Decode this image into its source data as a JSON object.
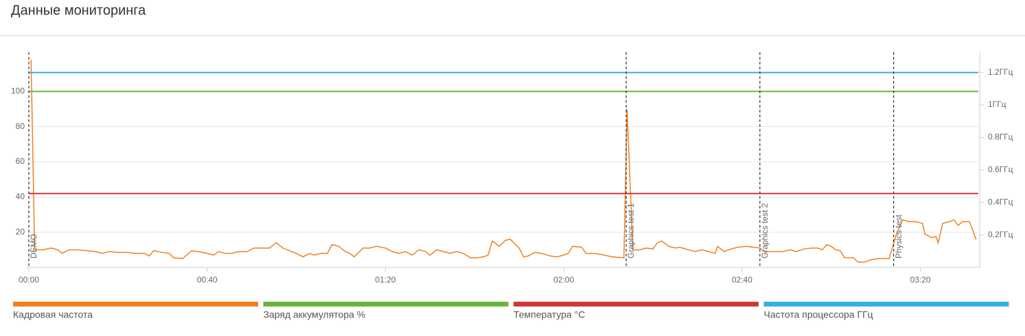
{
  "title": "Данные мониторинга",
  "chart_data": {
    "type": "line",
    "xlim": [
      0,
      213
    ],
    "xticks": [
      {
        "value": 0,
        "label": "00:00"
      },
      {
        "value": 40,
        "label": "00:40"
      },
      {
        "value": 80,
        "label": "01:20"
      },
      {
        "value": 120,
        "label": "02:00"
      },
      {
        "value": 160,
        "label": "02:40"
      },
      {
        "value": 200,
        "label": "03:20"
      }
    ],
    "ylim": [
      0,
      120
    ],
    "yticks": [
      20,
      40,
      60,
      80,
      100
    ],
    "y2lim": [
      0,
      1.3
    ],
    "y2ticks": [
      {
        "value": 0.2,
        "label": "0.2ГГц"
      },
      {
        "value": 0.4,
        "label": "0.4ГГц"
      },
      {
        "value": 0.6,
        "label": "0.6ГГц"
      },
      {
        "value": 0.8,
        "label": "0.8ГГц"
      },
      {
        "value": 1,
        "label": "1ГГц"
      },
      {
        "value": 1.2,
        "label": "1.2ГГц"
      }
    ],
    "grid": true,
    "markers": [
      {
        "x": 0,
        "label": "DEMO"
      },
      {
        "x": 134,
        "label": "Graphics test 1"
      },
      {
        "x": 164,
        "label": "Graphics test 2"
      },
      {
        "x": 194,
        "label": "Physics test"
      }
    ],
    "series": [
      {
        "name": "Кадровая частота",
        "color": "#f08020",
        "x": [
          0.5,
          1.3,
          3,
          5,
          6.5,
          7.5,
          9,
          11,
          13,
          15,
          16.5,
          18,
          20,
          22,
          24,
          26,
          27,
          28,
          30,
          31.5,
          32.5,
          34.5,
          36.5,
          38,
          40,
          41.5,
          42.5,
          44,
          45.5,
          47,
          49,
          50.5,
          52,
          54,
          55.5,
          57,
          59,
          60,
          61.5,
          63,
          64,
          65.5,
          67,
          68,
          69.5,
          71,
          72,
          73,
          75,
          76.5,
          78,
          80,
          81.5,
          83,
          84.5,
          86,
          87.5,
          89,
          90,
          91.5,
          93,
          94.5,
          96,
          97.5,
          99,
          100.5,
          102,
          103,
          104,
          105.5,
          107,
          108,
          110,
          111,
          112,
          113.5,
          115,
          117,
          118.5,
          120,
          121,
          122,
          124,
          125,
          127,
          129,
          131,
          133.5,
          134.2,
          135.5,
          137,
          138.5,
          140,
          141,
          142,
          143.5,
          145,
          146,
          148,
          149.5,
          151,
          152.5,
          154,
          154.5,
          156,
          157,
          159,
          161,
          162.5,
          164,
          165,
          167,
          169,
          171,
          172,
          174,
          175.5,
          177,
          178,
          179,
          180,
          181,
          182,
          183,
          185,
          186,
          187.5,
          189,
          191,
          193,
          194.5,
          196,
          197.5,
          199,
          200.5,
          201,
          202.5,
          203.5,
          204,
          205,
          206.5,
          207.5,
          208.5,
          209.5,
          211,
          212.5
        ],
        "values": [
          118,
          10,
          10,
          11,
          10,
          8,
          10,
          10,
          9.5,
          9,
          8,
          9,
          8.5,
          8.5,
          8,
          8,
          6.5,
          9.5,
          8.5,
          8,
          5.5,
          5,
          9.5,
          9,
          8,
          7,
          9,
          8,
          8,
          9,
          9,
          11,
          11,
          11,
          14,
          11,
          9,
          8,
          6,
          8,
          7,
          8,
          8,
          13,
          12,
          9,
          8,
          6,
          11,
          11,
          12,
          11,
          9,
          8,
          9,
          7,
          10,
          9,
          7,
          10,
          9,
          8,
          9,
          8,
          5.5,
          5.5,
          6,
          7,
          15,
          12,
          15.5,
          16,
          11,
          6,
          6.5,
          8.5,
          8,
          6.5,
          6,
          7,
          8,
          12,
          11.5,
          8,
          8,
          7,
          6,
          5.5,
          90,
          10,
          10,
          11,
          10.5,
          14,
          15,
          12,
          11,
          11.5,
          10,
          9,
          10,
          9,
          8,
          12,
          9,
          10,
          11.5,
          12,
          11.5,
          11,
          9,
          9,
          9,
          10,
          9,
          10.5,
          11,
          11,
          10,
          13,
          12,
          10,
          9.5,
          5.5,
          5.5,
          3,
          3,
          4.5,
          5,
          5,
          18,
          27,
          26,
          26,
          25,
          19,
          17,
          17.5,
          14,
          25,
          26,
          27,
          24,
          26,
          26,
          16
        ]
      },
      {
        "name": "Заряд аккумулятора %",
        "color": "#6ab43c",
        "x": [
          0,
          213
        ],
        "values": [
          100,
          100
        ]
      },
      {
        "name": "Температура °C",
        "color": "#d03838",
        "x": [
          0,
          213
        ],
        "values": [
          42,
          42
        ]
      },
      {
        "name": "Частота процессора ГГц",
        "color": "#38aee6",
        "x": [
          0,
          213
        ],
        "values": [
          1.2,
          1.2
        ],
        "axis": "y2"
      }
    ]
  }
}
